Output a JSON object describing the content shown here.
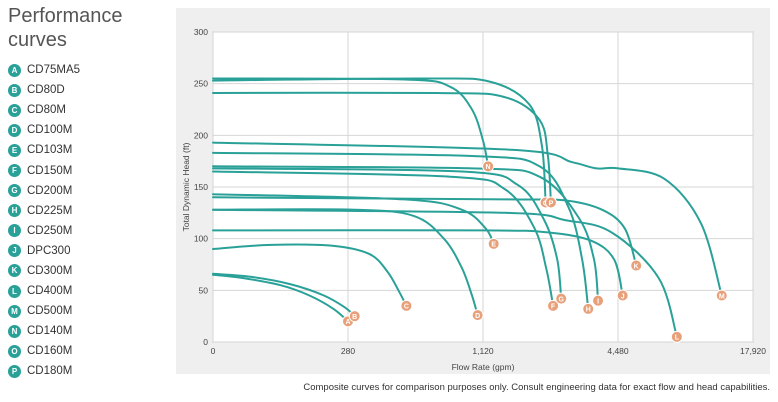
{
  "sidebar": {
    "title_line1": "Performance",
    "title_line2": "curves"
  },
  "colors": {
    "curve": "#2aa198",
    "badge": "#e8a07a",
    "plot_bg": "#efefef",
    "grid": "#d6d6d6"
  },
  "chart_data": {
    "type": "line",
    "title": "",
    "xlabel": "Flow Rate (gpm)",
    "ylabel": "Total Dynamic Head (ft)",
    "x_ticks": [
      "0",
      "280",
      "1,120",
      "4,480",
      "17,920"
    ],
    "y_ticks": [
      0,
      50,
      100,
      150,
      200,
      250,
      300
    ],
    "ylim": [
      0,
      300
    ],
    "x_scale": "log",
    "grid": true,
    "legend": "left",
    "series": [
      {
        "name": "CD75MA5",
        "letter": "A",
        "points": [
          [
            0,
            65
          ],
          [
            60,
            62
          ],
          [
            140,
            55
          ],
          [
            200,
            45
          ],
          [
            250,
            32
          ],
          [
            280,
            20
          ]
        ]
      },
      {
        "name": "CD80D",
        "letter": "B",
        "points": [
          [
            0,
            66
          ],
          [
            80,
            63
          ],
          [
            160,
            56
          ],
          [
            230,
            45
          ],
          [
            275,
            33
          ],
          [
            300,
            25
          ]
        ]
      },
      {
        "name": "CD80M",
        "letter": "C",
        "points": [
          [
            0,
            90
          ],
          [
            120,
            94
          ],
          [
            250,
            93
          ],
          [
            350,
            85
          ],
          [
            420,
            68
          ],
          [
            470,
            50
          ],
          [
            510,
            35
          ]
        ]
      },
      {
        "name": "CD100M",
        "letter": "D",
        "points": [
          [
            0,
            128
          ],
          [
            300,
            128
          ],
          [
            550,
            122
          ],
          [
            750,
            100
          ],
          [
            900,
            72
          ],
          [
            1000,
            45
          ],
          [
            1060,
            26
          ]
        ]
      },
      {
        "name": "CD103M",
        "letter": "E",
        "points": [
          [
            0,
            143
          ],
          [
            500,
            138
          ],
          [
            900,
            128
          ],
          [
            1150,
            110
          ],
          [
            1250,
            95
          ]
        ]
      },
      {
        "name": "CD150M",
        "letter": "F",
        "points": [
          [
            0,
            165
          ],
          [
            800,
            160
          ],
          [
            1400,
            148
          ],
          [
            1900,
            110
          ],
          [
            2150,
            70
          ],
          [
            2300,
            35
          ]
        ]
      },
      {
        "name": "CD200M",
        "letter": "G",
        "points": [
          [
            0,
            168
          ],
          [
            900,
            165
          ],
          [
            1600,
            152
          ],
          [
            2100,
            118
          ],
          [
            2400,
            80
          ],
          [
            2500,
            42
          ]
        ]
      },
      {
        "name": "CD225M",
        "letter": "H",
        "points": [
          [
            0,
            183
          ],
          [
            1000,
            180
          ],
          [
            2000,
            170
          ],
          [
            2700,
            130
          ],
          [
            3100,
            80
          ],
          [
            3300,
            32
          ]
        ]
      },
      {
        "name": "CD250M",
        "letter": "I",
        "points": [
          [
            0,
            170
          ],
          [
            1000,
            168
          ],
          [
            2000,
            160
          ],
          [
            3000,
            120
          ],
          [
            3500,
            80
          ],
          [
            3650,
            40
          ]
        ]
      },
      {
        "name": "DPC300",
        "letter": "J",
        "points": [
          [
            0,
            108
          ],
          [
            1100,
            108
          ],
          [
            2200,
            106
          ],
          [
            3400,
            98
          ],
          [
            4300,
            80
          ],
          [
            4700,
            45
          ]
        ]
      },
      {
        "name": "CD300M",
        "letter": "K",
        "points": [
          [
            0,
            140
          ],
          [
            1400,
            138
          ],
          [
            2600,
            137
          ],
          [
            3800,
            128
          ],
          [
            4800,
            110
          ],
          [
            5400,
            74
          ]
        ]
      },
      {
        "name": "CD400M",
        "letter": "L",
        "points": [
          [
            0,
            128
          ],
          [
            1400,
            125
          ],
          [
            2600,
            118
          ],
          [
            4200,
            106
          ],
          [
            6800,
            62
          ],
          [
            8200,
            5
          ]
        ]
      },
      {
        "name": "CD500M",
        "letter": "M",
        "points": [
          [
            0,
            193
          ],
          [
            1500,
            186
          ],
          [
            2800,
            174
          ],
          [
            3600,
            168
          ],
          [
            4500,
            168
          ],
          [
            7200,
            158
          ],
          [
            10500,
            115
          ],
          [
            13000,
            45
          ]
        ]
      },
      {
        "name": "CD140M",
        "letter": "N",
        "points": [
          [
            0,
            255
          ],
          [
            500,
            254
          ],
          [
            800,
            247
          ],
          [
            1000,
            225
          ],
          [
            1120,
            195
          ],
          [
            1180,
            170
          ]
        ]
      },
      {
        "name": "CD160M",
        "letter": "O",
        "points": [
          [
            0,
            253
          ],
          [
            600,
            255
          ],
          [
            1200,
            252
          ],
          [
            1800,
            230
          ],
          [
            2050,
            190
          ],
          [
            2130,
            135
          ]
        ]
      },
      {
        "name": "CD180M",
        "letter": "P",
        "points": [
          [
            0,
            241
          ],
          [
            700,
            241
          ],
          [
            1400,
            237
          ],
          [
            2000,
            215
          ],
          [
            2180,
            180
          ],
          [
            2250,
            135
          ]
        ]
      }
    ]
  },
  "caption": "Composite curves for comparison purposes only. Consult engineering data for exact flow and head capabilities."
}
